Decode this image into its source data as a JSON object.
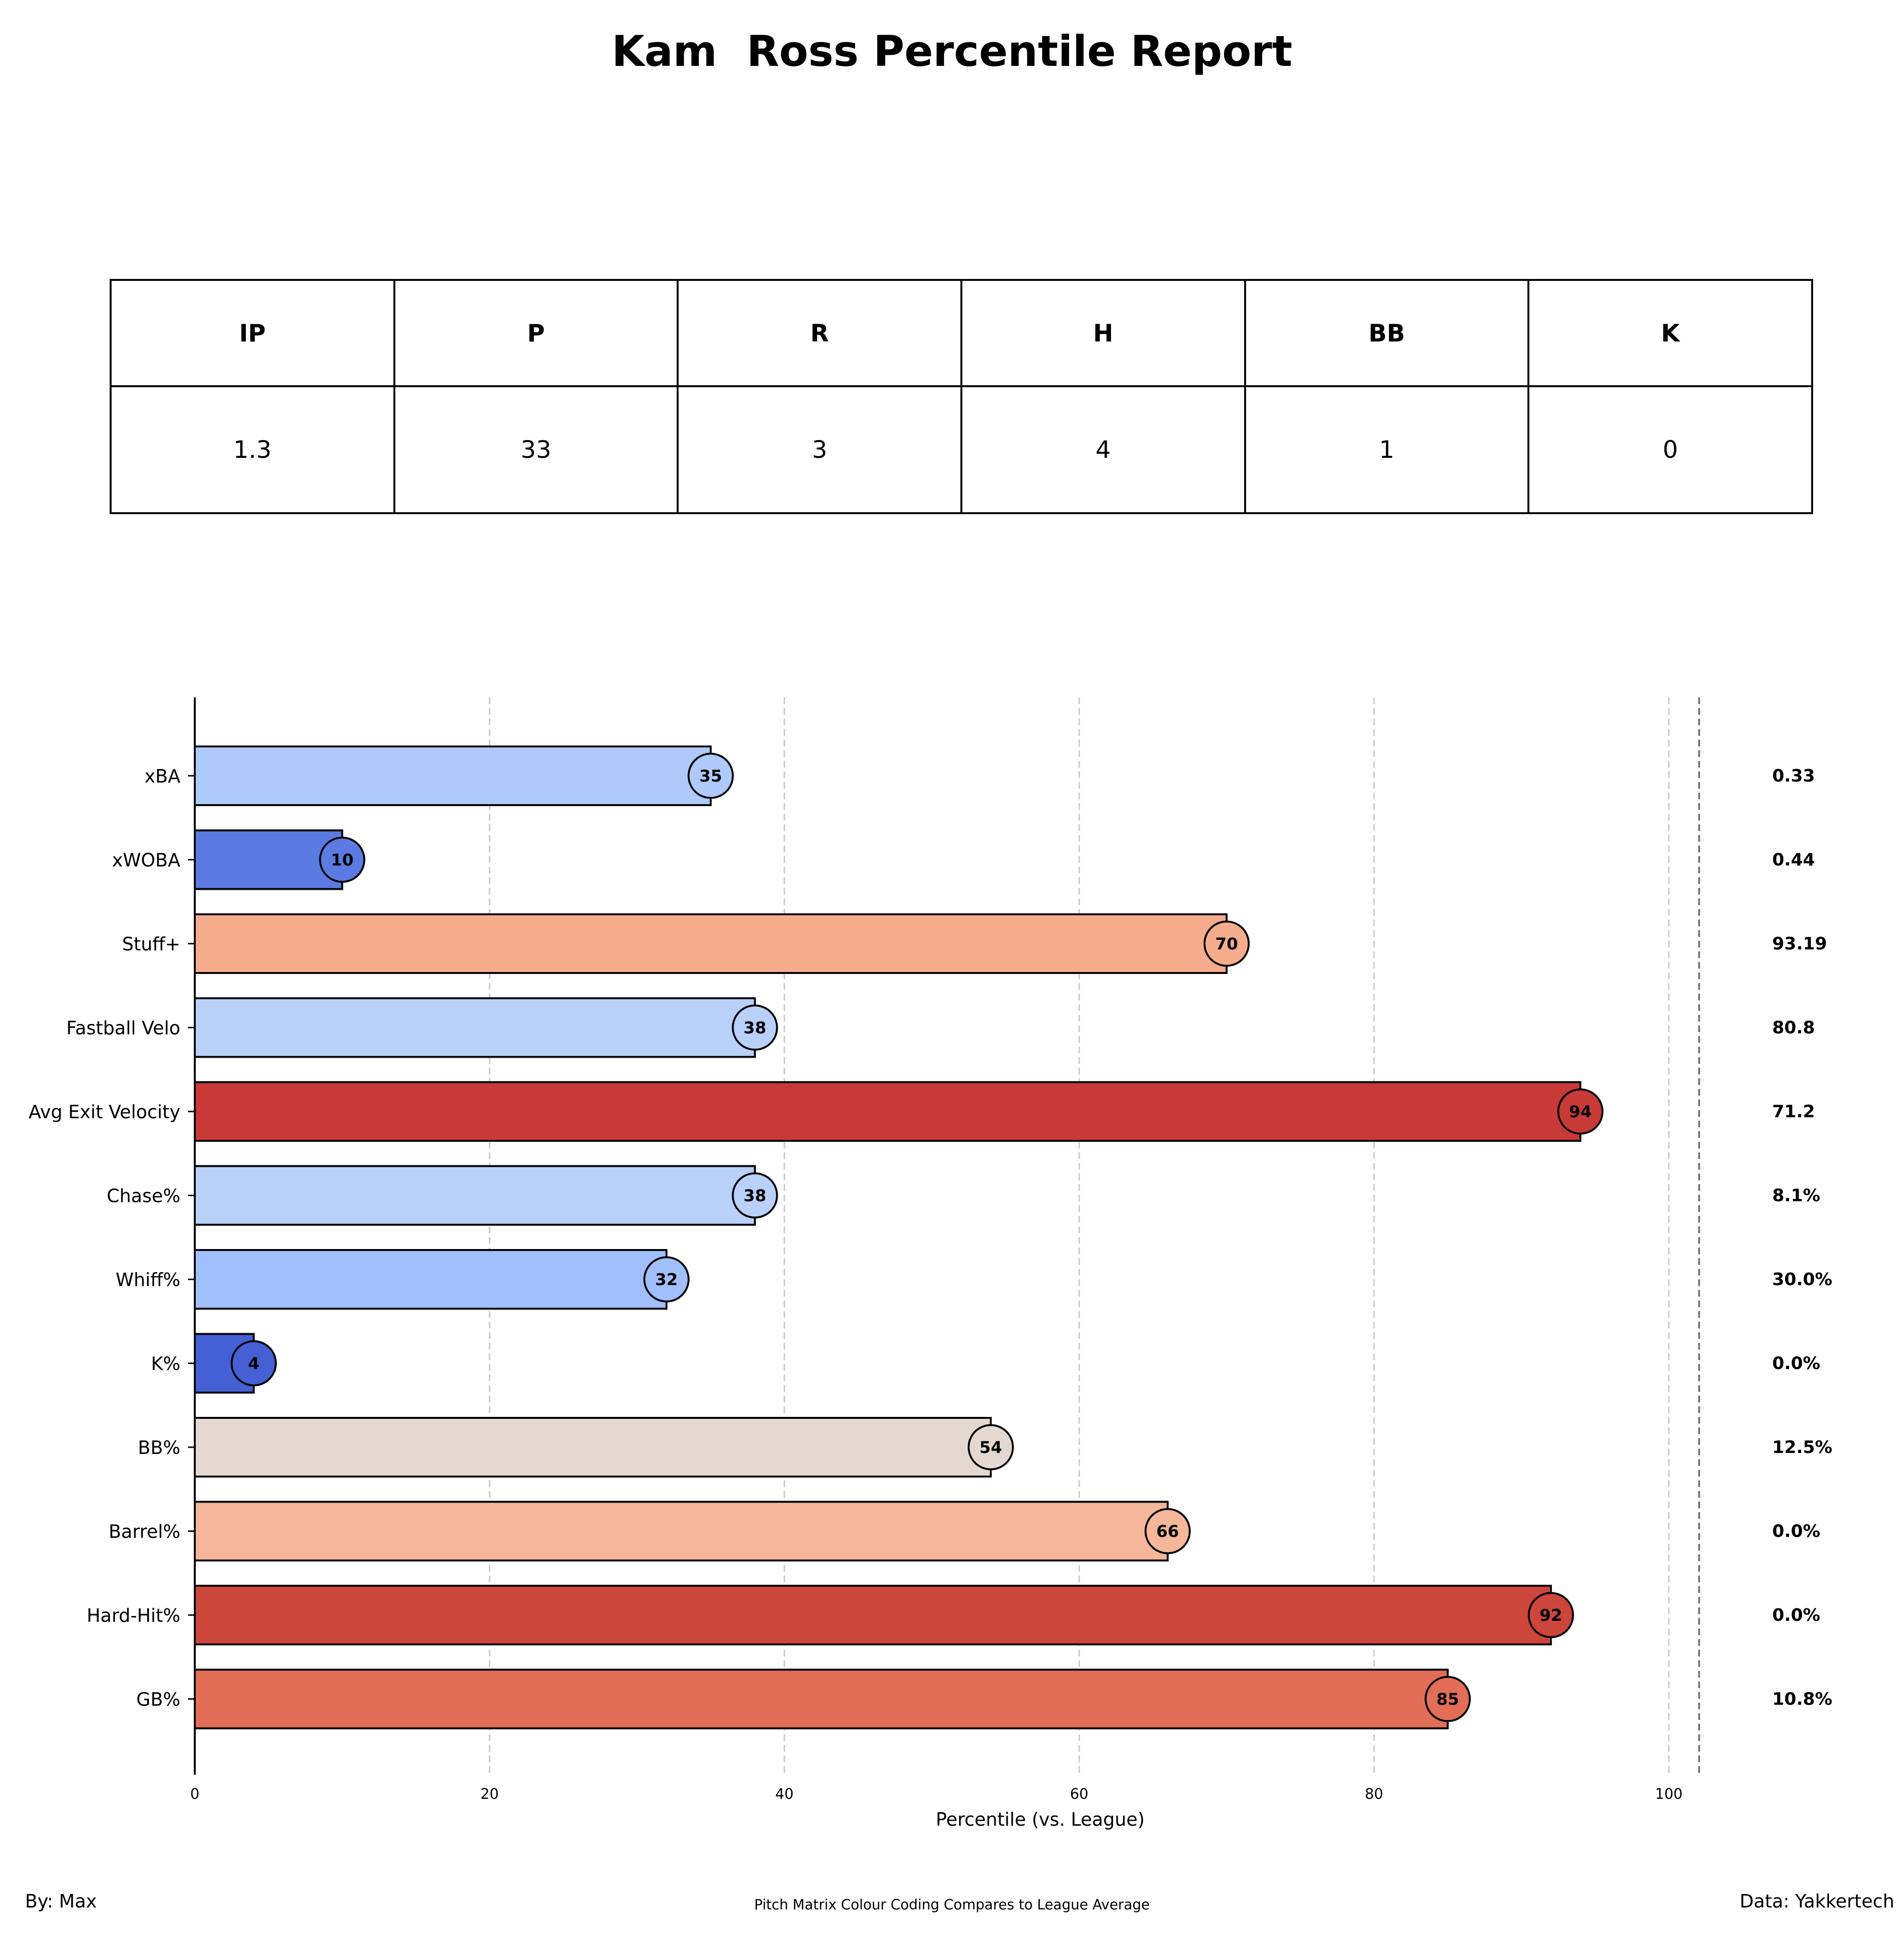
{
  "title": "Kam  Ross Percentile Report",
  "stats_table": {
    "headers": [
      "IP",
      "P",
      "R",
      "H",
      "BB",
      "K"
    ],
    "values": [
      "1.3",
      "33",
      "3",
      "4",
      "1",
      "0"
    ]
  },
  "footer": {
    "left": "By: Max",
    "center": "Pitch Matrix Colour Coding Compares to League Average",
    "right": "Data: Yakkertech"
  },
  "chart_data": {
    "type": "bar",
    "orientation": "horizontal",
    "xlabel": "Percentile (vs. League)",
    "xlim": [
      0,
      102
    ],
    "xticks": [
      0,
      20,
      40,
      60,
      80,
      100
    ],
    "grid": "vertical dashed",
    "categories": [
      "xBA",
      "xWOBA",
      "Stuff+",
      "Fastball Velo",
      "Avg Exit Velocity",
      "Chase%",
      "Whiff%",
      "K%",
      "BB%",
      "Barrel%",
      "Hard-Hit%",
      "GB%"
    ],
    "percentiles": [
      35,
      10,
      70,
      38,
      94,
      38,
      32,
      4,
      54,
      66,
      92,
      85
    ],
    "percentile_labels": [
      "35",
      "10",
      "70",
      "38",
      "94",
      "38",
      "32",
      "4",
      "54",
      "66",
      "92",
      "85"
    ],
    "raw_values": [
      "0.33",
      "0.44",
      "93.19",
      "80.8",
      "71.2",
      "8.1%",
      "30.0%",
      "0.0%",
      "12.5%",
      "0.0%",
      "0.0%",
      "10.8%"
    ],
    "colors": [
      "#b0c9fb",
      "#5b7be2",
      "#f5ac8d",
      "#b9d0f9",
      "#c83a37",
      "#b9d0f9",
      "#a2bffd",
      "#4560d4",
      "#e4d9d0",
      "#f4b799",
      "#cd463c",
      "#e36e57"
    ]
  }
}
